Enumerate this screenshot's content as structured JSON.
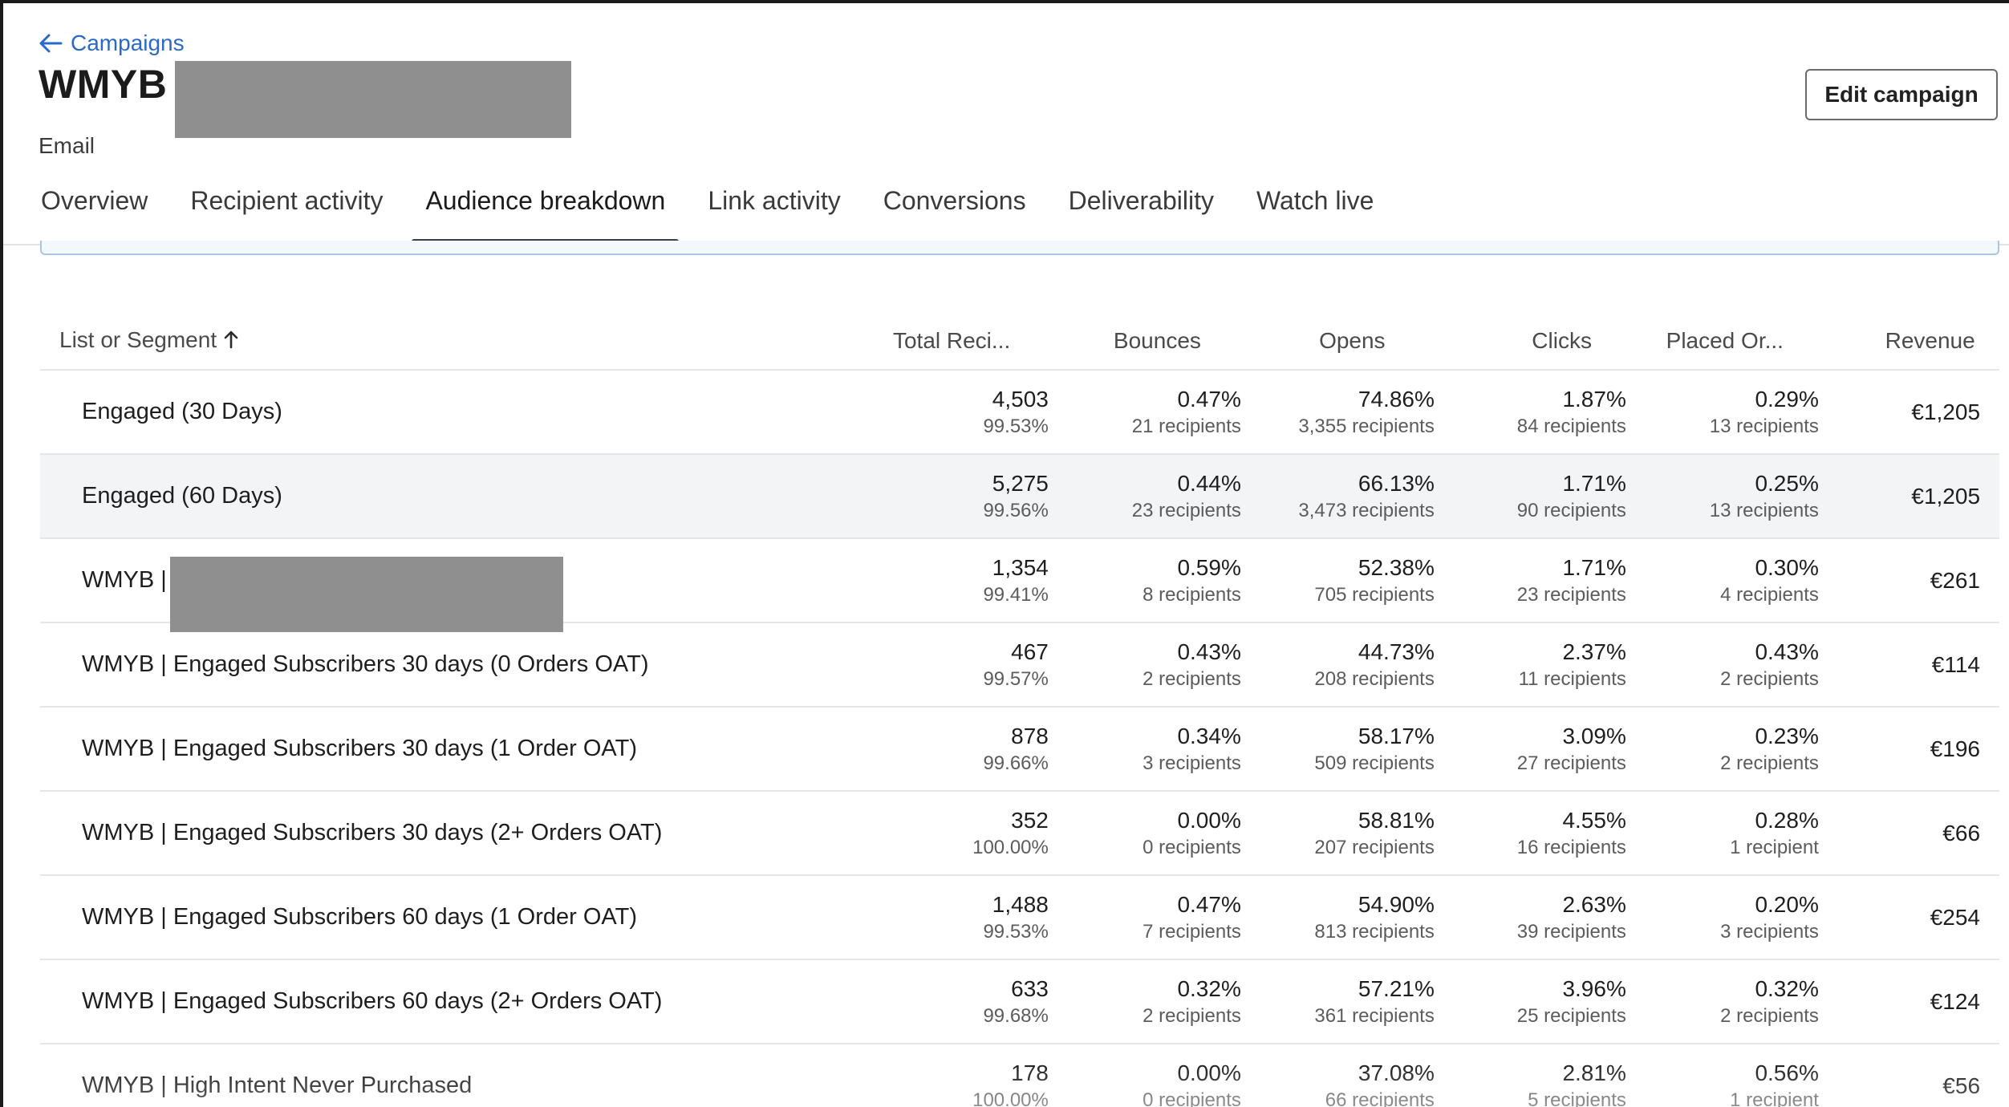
{
  "header": {
    "back_label": "Campaigns",
    "title": "WMYB",
    "title_separator": "|",
    "subtitle": "Email",
    "edit_button": "Edit campaign"
  },
  "tabs": [
    {
      "label": "Overview",
      "active": false
    },
    {
      "label": "Recipient activity",
      "active": false
    },
    {
      "label": "Audience breakdown",
      "active": true
    },
    {
      "label": "Link activity",
      "active": false
    },
    {
      "label": "Conversions",
      "active": false
    },
    {
      "label": "Deliverability",
      "active": false
    },
    {
      "label": "Watch live",
      "active": false
    }
  ],
  "table": {
    "columns": {
      "name": "List or Segment",
      "total": "Total Reci...",
      "bounces": "Bounces",
      "opens": "Opens",
      "clicks": "Clicks",
      "placed": "Placed Or...",
      "revenue": "Revenue"
    },
    "rows": [
      {
        "name": "Engaged (30 Days)",
        "total": "4,503",
        "total_pct": "99.53%",
        "bounces": "0.47%",
        "bounces_sub": "21 recipients",
        "opens": "74.86%",
        "opens_sub": "3,355 recipients",
        "clicks": "1.87%",
        "clicks_sub": "84 recipients",
        "placed": "0.29%",
        "placed_sub": "13 recipients",
        "revenue": "€1,205",
        "shaded": false,
        "redacted": false
      },
      {
        "name": "Engaged (60 Days)",
        "total": "5,275",
        "total_pct": "99.56%",
        "bounces": "0.44%",
        "bounces_sub": "23 recipients",
        "opens": "66.13%",
        "opens_sub": "3,473 recipients",
        "clicks": "1.71%",
        "clicks_sub": "90 recipients",
        "placed": "0.25%",
        "placed_sub": "13 recipients",
        "revenue": "€1,205",
        "shaded": true,
        "redacted": false
      },
      {
        "name": "WMYB |",
        "total": "1,354",
        "total_pct": "99.41%",
        "bounces": "0.59%",
        "bounces_sub": "8 recipients",
        "opens": "52.38%",
        "opens_sub": "705 recipients",
        "clicks": "1.71%",
        "clicks_sub": "23 recipients",
        "placed": "0.30%",
        "placed_sub": "4 recipients",
        "revenue": "€261",
        "shaded": false,
        "redacted": true
      },
      {
        "name": "WMYB | Engaged Subscribers 30 days (0 Orders OAT)",
        "total": "467",
        "total_pct": "99.57%",
        "bounces": "0.43%",
        "bounces_sub": "2 recipients",
        "opens": "44.73%",
        "opens_sub": "208 recipients",
        "clicks": "2.37%",
        "clicks_sub": "11 recipients",
        "placed": "0.43%",
        "placed_sub": "2 recipients",
        "revenue": "€114",
        "shaded": false,
        "redacted": false
      },
      {
        "name": "WMYB | Engaged Subscribers 30 days (1 Order OAT)",
        "total": "878",
        "total_pct": "99.66%",
        "bounces": "0.34%",
        "bounces_sub": "3 recipients",
        "opens": "58.17%",
        "opens_sub": "509 recipients",
        "clicks": "3.09%",
        "clicks_sub": "27 recipients",
        "placed": "0.23%",
        "placed_sub": "2 recipients",
        "revenue": "€196",
        "shaded": false,
        "redacted": false
      },
      {
        "name": "WMYB | Engaged Subscribers 30 days (2+ Orders OAT)",
        "total": "352",
        "total_pct": "100.00%",
        "bounces": "0.00%",
        "bounces_sub": "0 recipients",
        "opens": "58.81%",
        "opens_sub": "207 recipients",
        "clicks": "4.55%",
        "clicks_sub": "16 recipients",
        "placed": "0.28%",
        "placed_sub": "1 recipient",
        "revenue": "€66",
        "shaded": false,
        "redacted": false
      },
      {
        "name": "WMYB | Engaged Subscribers 60 days (1 Order OAT)",
        "total": "1,488",
        "total_pct": "99.53%",
        "bounces": "0.47%",
        "bounces_sub": "7 recipients",
        "opens": "54.90%",
        "opens_sub": "813 recipients",
        "clicks": "2.63%",
        "clicks_sub": "39 recipients",
        "placed": "0.20%",
        "placed_sub": "3 recipients",
        "revenue": "€254",
        "shaded": false,
        "redacted": false
      },
      {
        "name": "WMYB | Engaged Subscribers 60 days (2+ Orders OAT)",
        "total": "633",
        "total_pct": "99.68%",
        "bounces": "0.32%",
        "bounces_sub": "2 recipients",
        "opens": "57.21%",
        "opens_sub": "361 recipients",
        "clicks": "3.96%",
        "clicks_sub": "25 recipients",
        "placed": "0.32%",
        "placed_sub": "2 recipients",
        "revenue": "€124",
        "shaded": false,
        "redacted": false
      },
      {
        "name": "WMYB | High Intent Never Purchased",
        "total": "178",
        "total_pct": "100.00%",
        "bounces": "0.00%",
        "bounces_sub": "0 recipients",
        "opens": "37.08%",
        "opens_sub": "66 recipients",
        "clicks": "2.81%",
        "clicks_sub": "5 recipients",
        "placed": "0.56%",
        "placed_sub": "1 recipient",
        "revenue": "€56",
        "shaded": false,
        "redacted": false
      }
    ]
  },
  "colors": {
    "link": "#2a6ac7",
    "active_tab_indicator": "#3a3f47",
    "row_shade": "#f3f4f5",
    "redaction": "#8f8f8f"
  },
  "icons": {
    "back": "arrow-left-icon",
    "sort": "arrow-up-icon"
  }
}
